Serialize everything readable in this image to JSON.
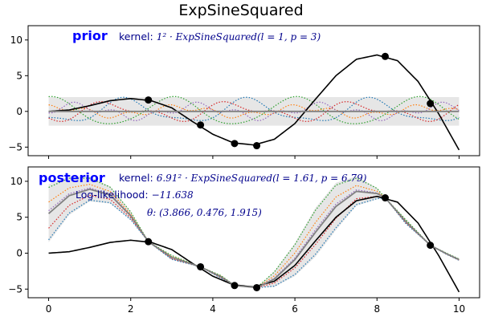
{
  "figure": {
    "title": "ExpSineSquared"
  },
  "colors": {
    "band": "#e6e6e6",
    "mean": "#808080",
    "truth": "#000000",
    "points": "#000000",
    "label": "#0000ff",
    "annotation": "#00008b",
    "sample_colors": [
      "#1f77b4",
      "#ff7f0e",
      "#2ca02c",
      "#d62728",
      "#9467bd"
    ]
  },
  "chart_data": [
    {
      "type": "line",
      "panel": "prior",
      "label": "prior",
      "annotations": {
        "kernel_prefix": "kernel: ",
        "kernel_math": "1² · ExpSineSquared(l = 1, p = 3)"
      },
      "xlim": [
        -0.5,
        10.5
      ],
      "ylim": [
        -6.2,
        12.0
      ],
      "xticks": [
        0,
        2,
        4,
        6,
        8,
        10
      ],
      "yticks": [
        -5,
        0,
        5,
        10
      ],
      "xtick_labels_visible": false,
      "true_function": {
        "x": [
          0,
          0.5,
          1,
          1.5,
          2,
          2.5,
          3,
          3.5,
          4,
          4.5,
          5,
          5.5,
          6,
          6.5,
          7,
          7.5,
          8,
          8.5,
          9,
          9.5,
          10
        ],
        "y": [
          0,
          0.2,
          0.8,
          1.5,
          1.8,
          1.5,
          0.5,
          -1.4,
          -3.2,
          -4.4,
          -4.7,
          -3.9,
          -1.7,
          1.7,
          5.0,
          7.3,
          7.9,
          7.1,
          4.2,
          -0.3,
          -5.4
        ]
      },
      "observations": {
        "x": [
          2.43,
          3.7,
          4.53,
          5.07,
          8.2,
          9.3
        ],
        "y": [
          1.6,
          -1.9,
          -4.5,
          -4.8,
          7.7,
          1.1
        ]
      },
      "mean": {
        "x": [
          0,
          10
        ],
        "y": [
          0,
          0
        ]
      },
      "band": {
        "x": [
          0,
          10
        ],
        "lower": [
          -2,
          -2
        ],
        "upper": [
          2,
          2
        ]
      },
      "samples": [
        {
          "amp": 1.5,
          "freq": 2.1,
          "phase": 3.9,
          "amp2": 0.5,
          "freq2": 4.2,
          "phase2": 0.4
        },
        {
          "amp": 0.6,
          "freq": 2.1,
          "phase": 1.2,
          "amp2": 0.4,
          "freq2": 6.3,
          "phase2": 2.0
        },
        {
          "amp": 1.9,
          "freq": 2.1,
          "phase": 1.5,
          "amp2": 0.2,
          "freq2": 4.2,
          "phase2": 1.0
        },
        {
          "amp": 1.0,
          "freq": 2.1,
          "phase": 4.6,
          "amp2": 0.6,
          "freq2": 4.2,
          "phase2": 3.0
        },
        {
          "amp": 0.8,
          "freq": 2.1,
          "phase": 0.2,
          "amp2": 0.5,
          "freq2": 6.3,
          "phase2": 4.0
        }
      ]
    },
    {
      "type": "line",
      "panel": "posterior",
      "label": "posterior",
      "annotations": {
        "kernel_prefix": "kernel: ",
        "kernel_math": "6.91² · ExpSineSquared(l = 1.61, p = 6.79)",
        "loglik_prefix": "Log-likelihood: ",
        "loglik_value": "−11.638",
        "theta": "θ: (3.866, 0.476, 1.915)"
      },
      "xlim": [
        -0.5,
        10.5
      ],
      "ylim": [
        -6.2,
        12.0
      ],
      "xticks": [
        0,
        2,
        4,
        6,
        8,
        10
      ],
      "yticks": [
        -5,
        0,
        5,
        10
      ],
      "xtick_labels": [
        "0",
        "2",
        "4",
        "6",
        "8",
        "10"
      ],
      "ytick_labels": [
        "−5",
        "0",
        "5",
        "10"
      ],
      "true_function": {
        "x": [
          0,
          0.5,
          1,
          1.5,
          2,
          2.5,
          3,
          3.5,
          4,
          4.5,
          5,
          5.5,
          6,
          6.5,
          7,
          7.5,
          8,
          8.5,
          9,
          9.5,
          10
        ],
        "y": [
          0,
          0.2,
          0.8,
          1.5,
          1.8,
          1.5,
          0.5,
          -1.4,
          -3.2,
          -4.4,
          -4.7,
          -3.9,
          -1.7,
          1.7,
          5.0,
          7.3,
          7.9,
          7.1,
          4.2,
          -0.3,
          -5.4
        ]
      },
      "observations": {
        "x": [
          2.43,
          3.7,
          4.53,
          5.07,
          8.2,
          9.3
        ],
        "y": [
          1.6,
          -1.9,
          -4.5,
          -4.8,
          7.7,
          1.1
        ]
      },
      "mean": {
        "x": [
          0,
          0.5,
          1,
          1.5,
          2,
          2.43,
          3,
          3.7,
          4.2,
          4.53,
          5.07,
          5.5,
          6,
          6.5,
          7,
          7.5,
          8,
          8.2,
          8.7,
          9.3,
          9.7,
          10
        ],
        "y": [
          5.5,
          8.0,
          8.9,
          8.1,
          5.2,
          1.6,
          -0.6,
          -1.9,
          -3.3,
          -4.5,
          -4.8,
          -3.6,
          -0.9,
          2.9,
          6.5,
          8.6,
          8.3,
          7.7,
          4.4,
          1.1,
          -0.1,
          -0.9
        ]
      },
      "band": {
        "x": [
          0,
          0.5,
          1,
          1.5,
          2,
          2.43,
          3,
          3.7,
          4.2,
          4.53,
          5.07,
          5.5,
          6,
          6.5,
          7,
          7.5,
          8,
          8.2,
          8.7,
          9.3,
          9.7,
          10
        ],
        "lower": [
          1.5,
          5.3,
          7.2,
          6.9,
          4.6,
          1.6,
          -0.9,
          -1.9,
          -3.5,
          -4.5,
          -4.8,
          -4.7,
          -3.2,
          -0.5,
          3.2,
          6.6,
          7.5,
          7.7,
          4.1,
          1.1,
          -0.2,
          -1.0
        ],
        "upper": [
          9.6,
          10.7,
          10.6,
          9.3,
          5.8,
          1.6,
          -0.3,
          -1.9,
          -3.1,
          -4.5,
          -4.8,
          -2.5,
          1.4,
          6.3,
          9.8,
          10.7,
          9.1,
          7.7,
          4.7,
          1.1,
          0.0,
          -0.8
        ]
      },
      "sample_weights": [
        -0.9,
        0.4,
        0.9,
        -0.5,
        0.1
      ]
    }
  ]
}
